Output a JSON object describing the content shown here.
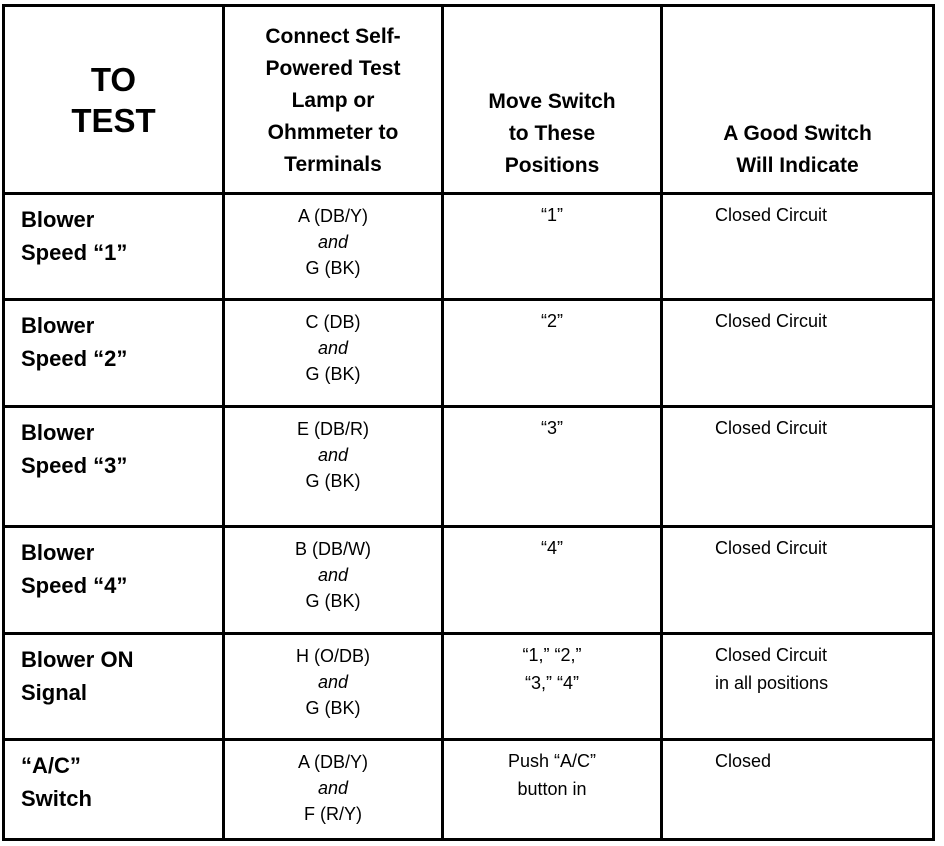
{
  "headers": {
    "to_test": [
      "TO",
      "TEST"
    ],
    "connect": [
      "Connect Self-",
      "Powered Test",
      "Lamp or",
      "Ohmmeter to",
      "Terminals"
    ],
    "move": [
      "Move Switch",
      "to These",
      "Positions"
    ],
    "good": [
      "A Good Switch",
      "Will Indicate"
    ]
  },
  "rows": [
    {
      "test": [
        "Blower",
        "Speed “1”"
      ],
      "terminals": [
        "A (DB/Y)",
        "and",
        "G (BK)"
      ],
      "positions": [
        "“1”"
      ],
      "result": [
        "Closed Circuit"
      ]
    },
    {
      "test": [
        "Blower",
        "Speed “2”"
      ],
      "terminals": [
        "C (DB)",
        "and",
        "G (BK)"
      ],
      "positions": [
        "“2”"
      ],
      "result": [
        "Closed Circuit"
      ]
    },
    {
      "test": [
        "Blower",
        "Speed “3”"
      ],
      "terminals": [
        "E (DB/R)",
        "and",
        "G (BK)"
      ],
      "positions": [
        "“3”"
      ],
      "result": [
        "Closed Circuit"
      ]
    },
    {
      "test": [
        "Blower",
        "Speed “4”"
      ],
      "terminals": [
        "B (DB/W)",
        "and",
        "G (BK)"
      ],
      "positions": [
        "“4”"
      ],
      "result": [
        "Closed Circuit"
      ]
    },
    {
      "test": [
        "Blower ON",
        "Signal"
      ],
      "terminals": [
        "H (O/DB)",
        "and",
        "G (BK)"
      ],
      "positions": [
        "“1,” “2,”",
        "“3,” “4”"
      ],
      "result": [
        "Closed Circuit",
        "in all positions"
      ]
    },
    {
      "test": [
        "“A/C”",
        "Switch"
      ],
      "terminals": [
        "A (DB/Y)",
        "and",
        "F (R/Y)"
      ],
      "positions": [
        "Push “A/C”",
        "button in"
      ],
      "result": [
        "Closed"
      ]
    }
  ]
}
